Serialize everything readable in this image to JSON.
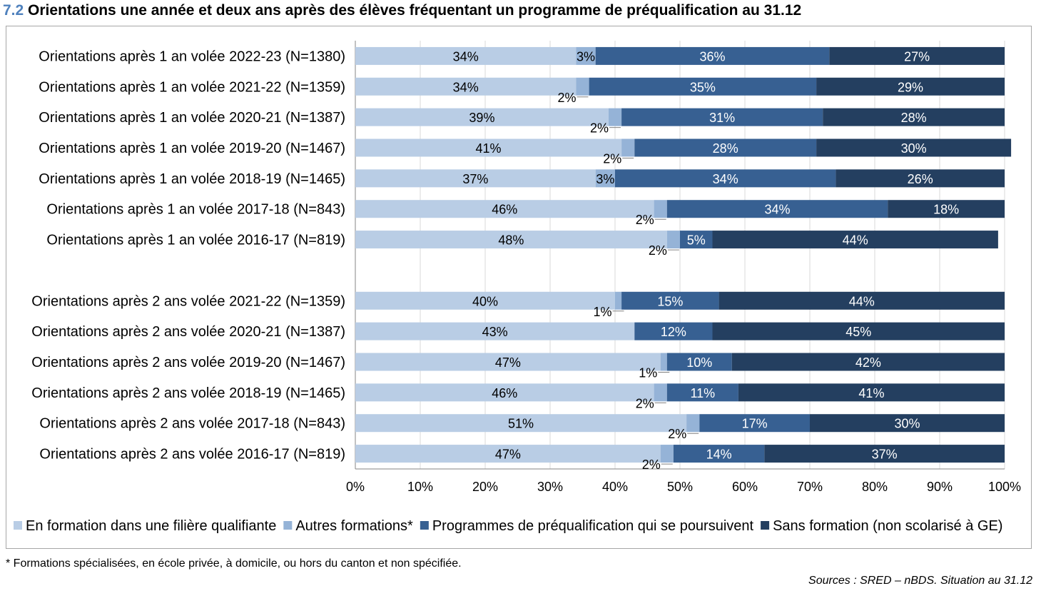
{
  "header": {
    "title_number": "7.2",
    "title_text": "Orientations une année et deux ans après des élèves fréquentant un programme de préqualification au 31.12"
  },
  "footnote": "* Formations spécialisées, en école privée, à domicile, ou hors du canton et non spécifiée.",
  "source": "Sources : SRED – nBDS. Situation au 31.12",
  "chart_data": {
    "type": "bar",
    "orientation": "horizontal",
    "stacked": "percent",
    "categories": [
      "Orientations après 1 an volée 2022-23 (N=1380)",
      "Orientations après 1 an volée 2021-22 (N=1359)",
      "Orientations après 1 an volée 2020-21 (N=1387)",
      "Orientations après 1 an volée 2019-20 (N=1467)",
      "Orientations après 1 an volée 2018-19 (N=1465)",
      "Orientations après 1 an volée 2017-18 (N=843)",
      "Orientations après 1 an volée 2016-17 (N=819)",
      "",
      "Orientations après 2 ans volée 2021-22 (N=1359)",
      "Orientations après 2 ans volée 2020-21 (N=1387)",
      "Orientations après 2 ans volée 2019-20 (N=1467)",
      "Orientations après 2 ans volée 2018-19 (N=1465)",
      "Orientations après 2 ans volée 2017-18 (N=843)",
      "Orientations après 2 ans volée 2016-17 (N=819)"
    ],
    "series": [
      {
        "name": "En formation dans une filière qualifiante",
        "color": "#b9cde5",
        "values": [
          34,
          34,
          39,
          41,
          37,
          46,
          48,
          null,
          40,
          43,
          47,
          46,
          51,
          47
        ],
        "labels": [
          "34%",
          "34%",
          "39%",
          "41%",
          "37%",
          "46%",
          "48%",
          "",
          "40%",
          "43%",
          "47%",
          "46%",
          "51%",
          "47%"
        ]
      },
      {
        "name": "Autres formations*",
        "color": "#95b3d7",
        "values": [
          3,
          2,
          2,
          2,
          3,
          2,
          2,
          null,
          1,
          0,
          1,
          2,
          2,
          2
        ],
        "labels": [
          "3%",
          "2%",
          "2%",
          "2%",
          "3%",
          "2%",
          "2%",
          "",
          "1%",
          "",
          "1%",
          "2%",
          "2%",
          "2%"
        ]
      },
      {
        "name": "Programmes de préqualification qui se poursuivent",
        "color": "#376092",
        "values": [
          36,
          35,
          31,
          28,
          34,
          34,
          5,
          null,
          15,
          12,
          10,
          11,
          17,
          14
        ],
        "labels": [
          "36%",
          "35%",
          "31%",
          "28%",
          "34%",
          "34%",
          "5%",
          "",
          "15%",
          "12%",
          "10%",
          "11%",
          "17%",
          "14%"
        ]
      },
      {
        "name": "Sans formation (non scolarisé à GE)",
        "color": "#243f60",
        "values": [
          27,
          29,
          28,
          30,
          26,
          18,
          44,
          null,
          44,
          45,
          42,
          41,
          30,
          37
        ],
        "labels": [
          "27%",
          "29%",
          "28%",
          "30%",
          "26%",
          "18%",
          "44%",
          "",
          "44%",
          "45%",
          "42%",
          "41%",
          "30%",
          "37%"
        ]
      }
    ],
    "xlim": [
      0,
      100
    ],
    "xticks": [
      "0%",
      "10%",
      "20%",
      "30%",
      "40%",
      "50%",
      "60%",
      "70%",
      "80%",
      "90%",
      "100%"
    ],
    "grid": "vertical",
    "legend": "bottom"
  }
}
